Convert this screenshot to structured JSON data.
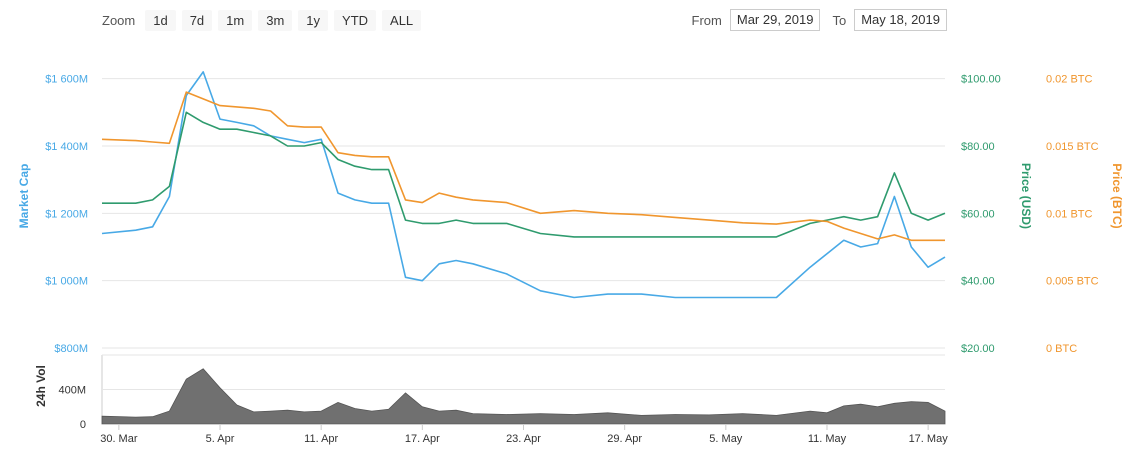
{
  "zoom": {
    "label": "Zoom",
    "buttons": [
      "1d",
      "7d",
      "1m",
      "3m",
      "1y",
      "YTD",
      "ALL"
    ]
  },
  "range": {
    "from_label": "From",
    "from_value": "Mar 29, 2019",
    "to_label": "To",
    "to_value": "May 18, 2019"
  },
  "chart_data": {
    "type": "line",
    "title": "",
    "legend": "none",
    "grid": true,
    "axes": {
      "market_cap": {
        "label": "Market Cap",
        "range": [
          800,
          1700
        ],
        "ticks": [
          800,
          1000,
          1200,
          1400,
          1600
        ],
        "tick_labels": [
          "$800M",
          "$1 000M",
          "$1 200M",
          "$1 400M",
          "$1 600M"
        ],
        "color": "#48a9e6"
      },
      "price_usd": {
        "label": "Price (USD)",
        "range": [
          20,
          110
        ],
        "ticks": [
          20,
          40,
          60,
          80,
          100
        ],
        "tick_labels": [
          "$20.00",
          "$40.00",
          "$60.00",
          "$80.00",
          "$100.00"
        ],
        "color": "#2f9b6e"
      },
      "price_btc": {
        "label": "Price (BTC)",
        "range": [
          0,
          0.0225
        ],
        "ticks": [
          0,
          0.005,
          0.01,
          0.015,
          0.02
        ],
        "tick_labels": [
          "0 BTC",
          "0.005 BTC",
          "0.01 BTC",
          "0.015 BTC",
          "0.02 BTC"
        ],
        "color": "#f0962e"
      },
      "volume": {
        "label": "24h Vol",
        "range": [
          0,
          800
        ],
        "ticks": [
          0,
          400
        ],
        "tick_labels": [
          "0",
          "400M"
        ],
        "color": "#777777"
      }
    },
    "x_range": [
      "2019-03-29",
      "2019-05-18"
    ],
    "x_ticks": [
      "2019-03-30",
      "2019-04-05",
      "2019-04-11",
      "2019-04-17",
      "2019-04-23",
      "2019-04-29",
      "2019-05-05",
      "2019-05-11",
      "2019-05-17"
    ],
    "x_tick_labels": [
      "30. Mar",
      "5. Apr",
      "11. Apr",
      "17. Apr",
      "23. Apr",
      "29. Apr",
      "5. May",
      "11. May",
      "17. May"
    ],
    "series": [
      {
        "key": "market_cap",
        "name": "Market Cap",
        "axis": "market_cap",
        "x": [
          "2019-03-29",
          "2019-03-31",
          "2019-04-01",
          "2019-04-02",
          "2019-04-03",
          "2019-04-04",
          "2019-04-05",
          "2019-04-06",
          "2019-04-07",
          "2019-04-08",
          "2019-04-09",
          "2019-04-10",
          "2019-04-11",
          "2019-04-12",
          "2019-04-13",
          "2019-04-14",
          "2019-04-15",
          "2019-04-16",
          "2019-04-17",
          "2019-04-18",
          "2019-04-19",
          "2019-04-20",
          "2019-04-22",
          "2019-04-24",
          "2019-04-26",
          "2019-04-28",
          "2019-04-30",
          "2019-05-02",
          "2019-05-04",
          "2019-05-06",
          "2019-05-08",
          "2019-05-10",
          "2019-05-11",
          "2019-05-12",
          "2019-05-13",
          "2019-05-14",
          "2019-05-15",
          "2019-05-16",
          "2019-05-17",
          "2019-05-18"
        ],
        "values": [
          1140,
          1150,
          1160,
          1250,
          1550,
          1620,
          1480,
          1470,
          1460,
          1430,
          1420,
          1410,
          1420,
          1260,
          1240,
          1230,
          1230,
          1010,
          1000,
          1050,
          1060,
          1050,
          1020,
          970,
          950,
          960,
          960,
          950,
          950,
          950,
          950,
          1040,
          1080,
          1120,
          1100,
          1110,
          1250,
          1100,
          1040,
          1070
        ]
      },
      {
        "key": "price_usd",
        "name": "Price (USD)",
        "axis": "price_usd",
        "x": [
          "2019-03-29",
          "2019-03-31",
          "2019-04-01",
          "2019-04-02",
          "2019-04-03",
          "2019-04-04",
          "2019-04-05",
          "2019-04-06",
          "2019-04-07",
          "2019-04-08",
          "2019-04-09",
          "2019-04-10",
          "2019-04-11",
          "2019-04-12",
          "2019-04-13",
          "2019-04-14",
          "2019-04-15",
          "2019-04-16",
          "2019-04-17",
          "2019-04-18",
          "2019-04-19",
          "2019-04-20",
          "2019-04-22",
          "2019-04-24",
          "2019-04-26",
          "2019-04-28",
          "2019-04-30",
          "2019-05-02",
          "2019-05-04",
          "2019-05-06",
          "2019-05-08",
          "2019-05-10",
          "2019-05-11",
          "2019-05-12",
          "2019-05-13",
          "2019-05-14",
          "2019-05-15",
          "2019-05-16",
          "2019-05-17",
          "2019-05-18"
        ],
        "values": [
          63,
          63,
          64,
          68,
          90,
          87,
          85,
          85,
          84,
          83,
          80,
          80,
          81,
          76,
          74,
          73,
          73,
          58,
          57,
          57,
          58,
          57,
          57,
          54,
          53,
          53,
          53,
          53,
          53,
          53,
          53,
          57,
          58,
          59,
          58,
          59,
          72,
          60,
          58,
          60
        ]
      },
      {
        "key": "price_btc",
        "name": "Price (BTC)",
        "axis": "price_btc",
        "x": [
          "2019-03-29",
          "2019-03-31",
          "2019-04-01",
          "2019-04-02",
          "2019-04-03",
          "2019-04-04",
          "2019-04-05",
          "2019-04-06",
          "2019-04-07",
          "2019-04-08",
          "2019-04-09",
          "2019-04-10",
          "2019-04-11",
          "2019-04-12",
          "2019-04-13",
          "2019-04-14",
          "2019-04-15",
          "2019-04-16",
          "2019-04-17",
          "2019-04-18",
          "2019-04-19",
          "2019-04-20",
          "2019-04-22",
          "2019-04-24",
          "2019-04-26",
          "2019-04-28",
          "2019-04-30",
          "2019-05-02",
          "2019-05-04",
          "2019-05-06",
          "2019-05-08",
          "2019-05-10",
          "2019-05-11",
          "2019-05-12",
          "2019-05-13",
          "2019-05-14",
          "2019-05-15",
          "2019-05-16",
          "2019-05-17",
          "2019-05-18"
        ],
        "values": [
          0.0155,
          0.0154,
          0.0153,
          0.0152,
          0.019,
          0.0185,
          0.018,
          0.0179,
          0.0178,
          0.0176,
          0.0165,
          0.0164,
          0.0164,
          0.0145,
          0.0143,
          0.0142,
          0.0142,
          0.011,
          0.0108,
          0.0115,
          0.0112,
          0.011,
          0.0108,
          0.01,
          0.0102,
          0.01,
          0.0099,
          0.0097,
          0.0095,
          0.0093,
          0.0092,
          0.0095,
          0.0094,
          0.0089,
          0.0085,
          0.0081,
          0.0084,
          0.008,
          0.008,
          0.008
        ]
      },
      {
        "key": "volume",
        "name": "24h Vol",
        "axis": "volume",
        "x": [
          "2019-03-29",
          "2019-03-31",
          "2019-04-01",
          "2019-04-02",
          "2019-04-03",
          "2019-04-04",
          "2019-04-05",
          "2019-04-06",
          "2019-04-07",
          "2019-04-08",
          "2019-04-09",
          "2019-04-10",
          "2019-04-11",
          "2019-04-12",
          "2019-04-13",
          "2019-04-14",
          "2019-04-15",
          "2019-04-16",
          "2019-04-17",
          "2019-04-18",
          "2019-04-19",
          "2019-04-20",
          "2019-04-22",
          "2019-04-24",
          "2019-04-26",
          "2019-04-28",
          "2019-04-30",
          "2019-05-02",
          "2019-05-04",
          "2019-05-06",
          "2019-05-08",
          "2019-05-10",
          "2019-05-11",
          "2019-05-12",
          "2019-05-13",
          "2019-05-14",
          "2019-05-15",
          "2019-05-16",
          "2019-05-17",
          "2019-05-18"
        ],
        "values": [
          90,
          80,
          85,
          150,
          520,
          640,
          420,
          220,
          140,
          150,
          160,
          140,
          150,
          250,
          180,
          150,
          170,
          360,
          200,
          150,
          160,
          120,
          110,
          120,
          110,
          130,
          100,
          110,
          105,
          120,
          100,
          150,
          130,
          210,
          230,
          200,
          240,
          260,
          250,
          150
        ]
      }
    ]
  }
}
